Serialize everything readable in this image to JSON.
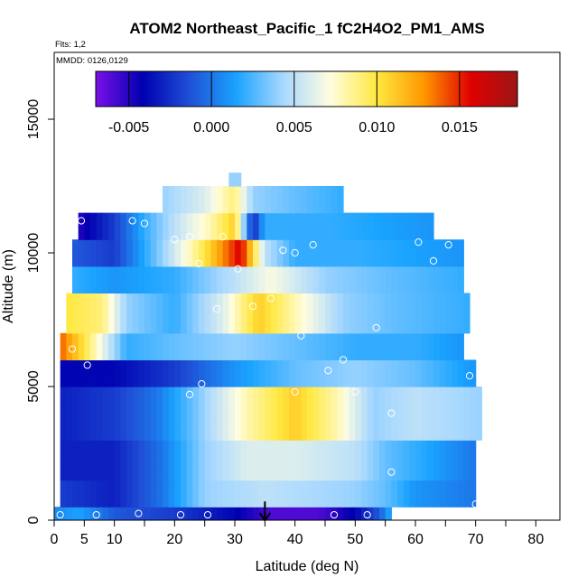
{
  "chart_data": {
    "type": "heatmap",
    "title": "ATOM2 Northeast_Pacific_1 fC2H4O2_PM1_AMS",
    "subtitle_flights": "Flts: 1,2",
    "subtitle_dates": "MMDD: 0126,0129",
    "xlabel": "Latitude (deg N)",
    "ylabel": "Altitude (m)",
    "xlim": [
      0,
      84
    ],
    "ylim": [
      0,
      17500
    ],
    "x_ticks": [
      0,
      5,
      10,
      20,
      30,
      40,
      50,
      60,
      70,
      80
    ],
    "x_minor_ticks": [
      15,
      25,
      35,
      45,
      55,
      65,
      75,
      85
    ],
    "y_ticks": [
      0,
      5000,
      10000,
      15000
    ],
    "colorbar": {
      "min": -0.007,
      "max": 0.0185,
      "ticks": [
        -0.005,
        0.0,
        0.005,
        0.01,
        0.015
      ],
      "tick_labels": [
        "-0.005",
        "0.000",
        "0.005",
        "0.010",
        "0.015"
      ],
      "colors": [
        "#7a10e8",
        "#0000b0",
        "#1f4fd6",
        "#1aa3ff",
        "#a8d8ff",
        "#fffde0",
        "#ffe840",
        "#ff9800",
        "#e00000",
        "#9c1616"
      ]
    },
    "field": [
      {
        "y0": 0,
        "y1": 500,
        "x0": 0,
        "x1": 56,
        "stops": [
          [
            0,
            0.0005
          ],
          [
            4,
            0.0015
          ],
          [
            10,
            -0.001
          ],
          [
            20,
            -0.002
          ],
          [
            30,
            -0.004
          ],
          [
            36,
            -0.006
          ],
          [
            44,
            -0.006
          ],
          [
            50,
            -0.004
          ],
          [
            54,
            -0.001
          ],
          [
            56,
            0.002
          ]
        ]
      },
      {
        "y0": 500,
        "y1": 1500,
        "x0": 1,
        "x1": 70,
        "stops": [
          [
            1,
            -0.002
          ],
          [
            10,
            -0.003
          ],
          [
            18,
            0.0
          ],
          [
            25,
            0.004
          ],
          [
            35,
            0.005
          ],
          [
            50,
            0.004
          ],
          [
            55,
            0.003
          ],
          [
            60,
            0.001
          ],
          [
            70,
            0.0
          ]
        ]
      },
      {
        "y0": 1500,
        "y1": 3000,
        "x0": 1,
        "x1": 70,
        "stops": [
          [
            1,
            -0.003
          ],
          [
            10,
            -0.003
          ],
          [
            18,
            0.0
          ],
          [
            25,
            0.004
          ],
          [
            32,
            0.006
          ],
          [
            40,
            0.006
          ],
          [
            50,
            0.005
          ],
          [
            55,
            0.003
          ],
          [
            60,
            0.002
          ],
          [
            70,
            0.0
          ]
        ]
      },
      {
        "y0": 3000,
        "y1": 5000,
        "x0": 1,
        "x1": 71,
        "stops": [
          [
            1,
            -0.003
          ],
          [
            10,
            -0.002
          ],
          [
            17,
            0.0
          ],
          [
            23,
            0.003
          ],
          [
            32,
            0.008
          ],
          [
            40,
            0.011
          ],
          [
            47,
            0.008
          ],
          [
            53,
            0.004
          ],
          [
            60,
            0.005
          ],
          [
            71,
            0.004
          ]
        ]
      },
      {
        "y0": 5000,
        "y1": 6000,
        "x0": 1,
        "x1": 70,
        "stops": [
          [
            1,
            -0.004
          ],
          [
            10,
            -0.004
          ],
          [
            20,
            -0.002
          ],
          [
            30,
            0.001
          ],
          [
            40,
            0.003
          ],
          [
            50,
            0.004
          ],
          [
            60,
            0.003
          ],
          [
            70,
            0.001
          ]
        ]
      },
      {
        "y0": 6000,
        "y1": 7000,
        "x0": 1,
        "x1": 68,
        "stops": [
          [
            1,
            0.014
          ],
          [
            5,
            0.01
          ],
          [
            12,
            0.002
          ],
          [
            20,
            0.003
          ],
          [
            30,
            0.004
          ],
          [
            40,
            0.003
          ],
          [
            50,
            0.002
          ],
          [
            60,
            0.002
          ],
          [
            68,
            0.001
          ]
        ]
      },
      {
        "y0": 7000,
        "y1": 8500,
        "x0": 2,
        "x1": 69,
        "stops": [
          [
            2,
            0.01
          ],
          [
            8,
            0.009
          ],
          [
            12,
            0.004
          ],
          [
            20,
            0.002
          ],
          [
            28,
            0.006
          ],
          [
            34,
            0.011
          ],
          [
            40,
            0.008
          ],
          [
            48,
            0.004
          ],
          [
            56,
            0.003
          ],
          [
            69,
            0.002
          ]
        ]
      },
      {
        "y0": 8500,
        "y1": 9500,
        "x0": 3,
        "x1": 68,
        "stops": [
          [
            3,
            0.002
          ],
          [
            10,
            0.001
          ],
          [
            20,
            0.002
          ],
          [
            30,
            0.005
          ],
          [
            36,
            0.007
          ],
          [
            45,
            0.004
          ],
          [
            55,
            0.003
          ],
          [
            68,
            0.002
          ]
        ]
      },
      {
        "y0": 9500,
        "y1": 10500,
        "x0": 3,
        "x1": 68,
        "stops": [
          [
            3,
            -0.001
          ],
          [
            10,
            -0.002
          ],
          [
            18,
            0.004
          ],
          [
            24,
            0.009
          ],
          [
            28,
            0.013
          ],
          [
            31,
            0.016
          ],
          [
            35,
            0.005
          ],
          [
            40,
            0.002
          ],
          [
            50,
            0.002
          ],
          [
            68,
            0.001
          ]
        ]
      },
      {
        "y0": 10500,
        "y1": 11500,
        "x0": 4,
        "x1": 63,
        "stops": [
          [
            4,
            -0.005
          ],
          [
            10,
            -0.002
          ],
          [
            15,
            0.002
          ],
          [
            20,
            0.005
          ],
          [
            26,
            0.008
          ],
          [
            30,
            0.011
          ],
          [
            33,
            -0.003
          ],
          [
            35,
            0.002
          ],
          [
            45,
            0.002
          ],
          [
            63,
            0.001
          ]
        ]
      },
      {
        "y0": 11500,
        "y1": 12500,
        "x0": 18,
        "x1": 48,
        "stops": [
          [
            18,
            0.004
          ],
          [
            25,
            0.006
          ],
          [
            30,
            0.009
          ],
          [
            33,
            0.004
          ],
          [
            40,
            0.003
          ],
          [
            48,
            0.002
          ]
        ]
      },
      {
        "y0": 12500,
        "y1": 13000,
        "x0": 29,
        "x1": 31,
        "stops": [
          [
            29,
            0.004
          ],
          [
            31,
            0.004
          ]
        ]
      }
    ],
    "points": [
      [
        1,
        200
      ],
      [
        7,
        200
      ],
      [
        14,
        250
      ],
      [
        21,
        200
      ],
      [
        25.5,
        200
      ],
      [
        46.5,
        200
      ],
      [
        52,
        200
      ],
      [
        70,
        600
      ],
      [
        56,
        1800
      ],
      [
        56,
        4000
      ],
      [
        50,
        4800
      ],
      [
        40,
        4800
      ],
      [
        22.5,
        4700
      ],
      [
        24.5,
        5100
      ],
      [
        3,
        6400
      ],
      [
        5.5,
        5800
      ],
      [
        45.5,
        5600
      ],
      [
        48,
        6000
      ],
      [
        69,
        5400
      ],
      [
        41,
        6900
      ],
      [
        53.5,
        7200
      ],
      [
        36,
        8300
      ],
      [
        27,
        7900
      ],
      [
        33,
        8000
      ],
      [
        30.5,
        9400
      ],
      [
        24,
        9600
      ],
      [
        40,
        10000
      ],
      [
        38,
        10100
      ],
      [
        43,
        10300
      ],
      [
        28,
        10600
      ],
      [
        22.5,
        10600
      ],
      [
        20,
        10500
      ],
      [
        4.5,
        11200
      ],
      [
        13,
        11200
      ],
      [
        15,
        11100
      ],
      [
        60.5,
        10400
      ],
      [
        63,
        9700
      ],
      [
        65.5,
        10300
      ],
      [
        66.5,
        11000
      ]
    ],
    "arrow": {
      "x": 35,
      "y_from": 700,
      "y_to": 0
    }
  }
}
